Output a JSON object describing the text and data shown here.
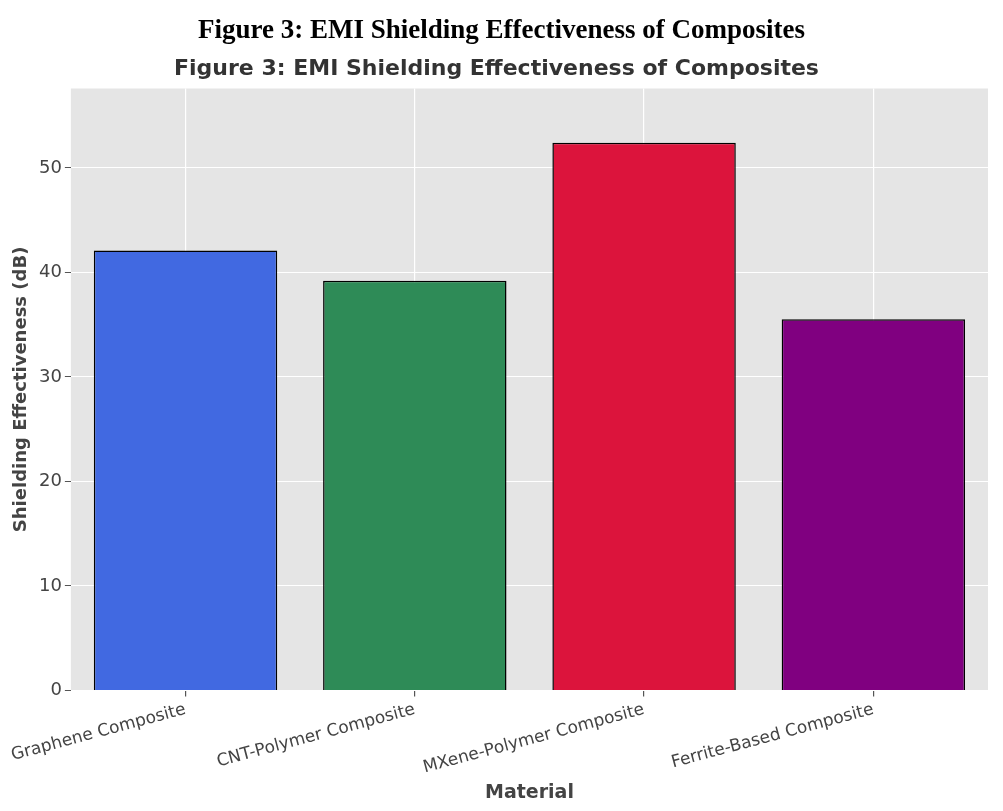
{
  "chart_data": {
    "type": "bar",
    "title": "Figure 3: EMI Shielding Effectiveness of Composites",
    "subtitle": "Figure 3: EMI Shielding Effectiveness of Composites",
    "xlabel": "Material",
    "ylabel": "Shielding Effectiveness (dB)",
    "categories": [
      "Graphene Composite",
      "CNT-Polymer Composite",
      "MXene-Polymer Composite",
      "Ferrite-Based Composite"
    ],
    "values": [
      42.1,
      39.2,
      52.4,
      35.5
    ],
    "colors": [
      "#4169e1",
      "#2e8b57",
      "#dc143c",
      "#800080"
    ],
    "ylim": [
      0,
      57.6
    ],
    "yticks": [
      0,
      10,
      20,
      30,
      40,
      50
    ],
    "grid": true,
    "legend": false
  }
}
